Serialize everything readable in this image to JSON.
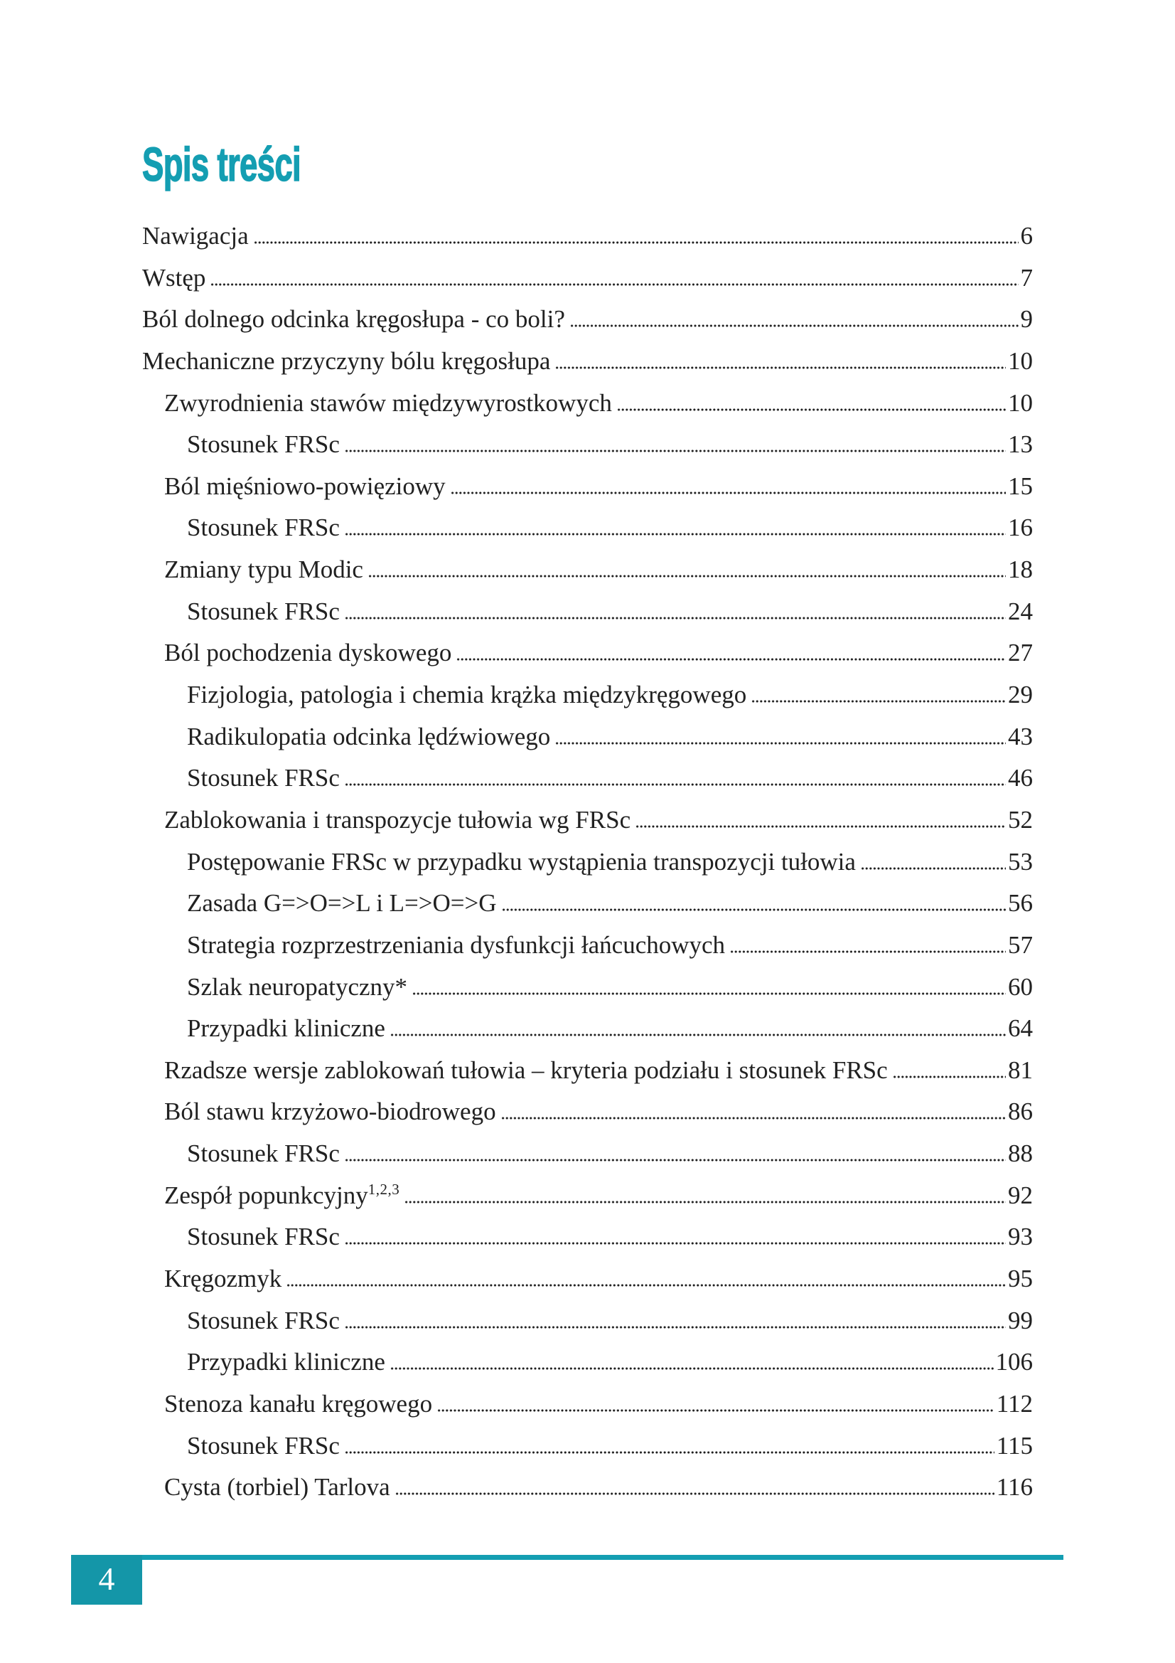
{
  "title": "Spis treści",
  "colors": {
    "accent": "#149EB2",
    "footer_teal": "#1496A8",
    "text": "#212121"
  },
  "footer": {
    "page_number": "4"
  },
  "toc": [
    {
      "label": "Nawigacja",
      "page": "6",
      "level": 0
    },
    {
      "label": "Wstęp",
      "page": "7",
      "level": 0
    },
    {
      "label": "Ból dolnego odcinka kręgosłupa - co boli?",
      "page": "9",
      "level": 0
    },
    {
      "label": "Mechaniczne przyczyny bólu kręgosłupa",
      "page": "10",
      "level": 0
    },
    {
      "label": "Zwyrodnienia stawów międzywyrostkowych",
      "page": "10",
      "level": 1
    },
    {
      "label": "Stosunek FRSc",
      "page": "13",
      "level": 2
    },
    {
      "label": "Ból mięśniowo-powięziowy",
      "page": "15",
      "level": 1
    },
    {
      "label": "Stosunek FRSc",
      "page": "16",
      "level": 2
    },
    {
      "label": "Zmiany typu Modic",
      "page": "18",
      "level": 1
    },
    {
      "label": "Stosunek FRSc",
      "page": "24",
      "level": 2
    },
    {
      "label": "Ból pochodzenia dyskowego",
      "page": "27",
      "level": 1
    },
    {
      "label": "Fizjologia, patologia i chemia krążka międzykręgowego",
      "page": "29",
      "level": 2
    },
    {
      "label": "Radikulopatia odcinka lędźwiowego",
      "page": "43",
      "level": 2
    },
    {
      "label": "Stosunek FRSc",
      "page": "46",
      "level": 2
    },
    {
      "label": "Zablokowania i transpozycje tułowia wg FRSc",
      "page": "52",
      "level": 1
    },
    {
      "label": "Postępowanie FRSc w przypadku wystąpienia transpozycji tułowia",
      "page": "53",
      "level": 2
    },
    {
      "label": "Zasada G=>O=>L i L=>O=>G",
      "page": "56",
      "level": 2
    },
    {
      "label": "Strategia rozprzestrzeniania dysfunkcji łańcuchowych",
      "page": "57",
      "level": 2
    },
    {
      "label": "Szlak neuropatyczny*",
      "page": "60",
      "level": 2
    },
    {
      "label": "Przypadki kliniczne",
      "page": "64",
      "level": 2
    },
    {
      "label": "Rzadsze wersje zablokowań tułowia – kryteria podziału i stosunek FRSc",
      "page": "81",
      "level": 1
    },
    {
      "label": "Ból stawu krzyżowo-biodrowego",
      "page": "86",
      "level": 1
    },
    {
      "label": "Stosunek FRSc",
      "page": "88",
      "level": 2
    },
    {
      "label": "Zespół popunkcyjny",
      "sup": "1,2,3",
      "page": "92",
      "level": 1
    },
    {
      "label": "Stosunek FRSc",
      "page": "93",
      "level": 2
    },
    {
      "label": "Kręgozmyk",
      "page": "95",
      "level": 1
    },
    {
      "label": "Stosunek FRSc",
      "page": "99",
      "level": 2
    },
    {
      "label": "Przypadki kliniczne",
      "page": "106",
      "level": 2
    },
    {
      "label": "Stenoza kanału kręgowego",
      "page": "112",
      "level": 1
    },
    {
      "label": "Stosunek FRSc",
      "page": "115",
      "level": 2
    },
    {
      "label": "Cysta (torbiel) Tarlova",
      "page": "116",
      "level": 1
    }
  ]
}
